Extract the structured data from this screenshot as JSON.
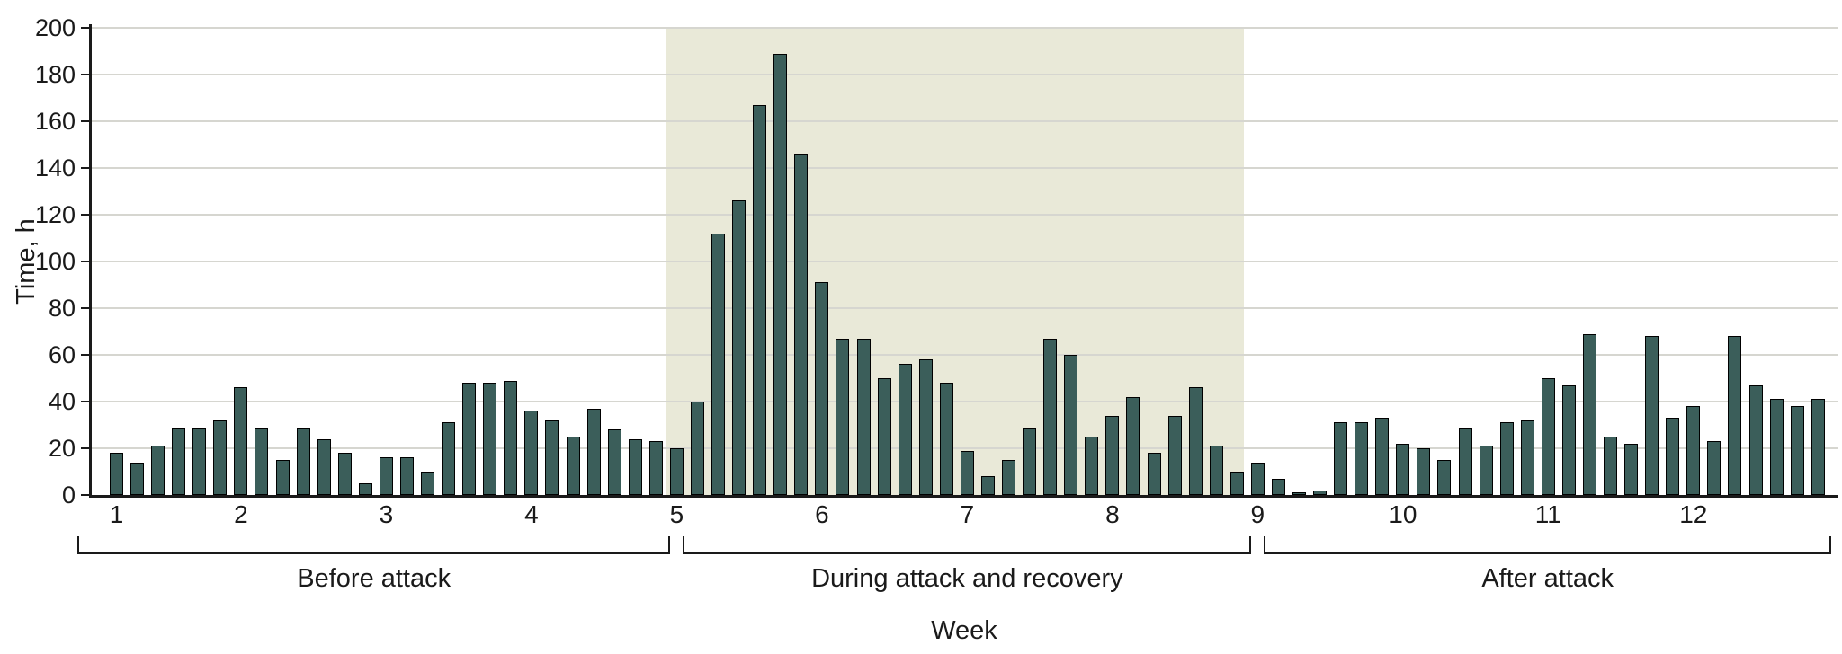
{
  "chart_data": {
    "type": "bar",
    "title": "",
    "ylabel": "Time, h",
    "xlabel": "Week",
    "ylim": [
      0,
      200
    ],
    "ytick_step": 20,
    "yticks": [
      0,
      20,
      40,
      60,
      80,
      100,
      120,
      140,
      160,
      180,
      200
    ],
    "grid": true,
    "legend_position": "none",
    "bar_unit": "day",
    "weeks": [
      {
        "week": "1",
        "values": [
          18,
          14,
          21,
          29,
          29,
          32
        ]
      },
      {
        "week": "2",
        "values": [
          46,
          29,
          15,
          29,
          24,
          18,
          5
        ]
      },
      {
        "week": "3",
        "values": [
          16,
          16,
          10,
          31,
          48,
          48,
          49
        ]
      },
      {
        "week": "4",
        "values": [
          36,
          32,
          25,
          37,
          28,
          24,
          23
        ]
      },
      {
        "week": "5",
        "values": [
          20,
          40,
          112,
          126,
          167,
          189,
          146
        ]
      },
      {
        "week": "6",
        "values": [
          91,
          67,
          67,
          50,
          56,
          58,
          48
        ]
      },
      {
        "week": "7",
        "values": [
          19,
          8,
          15,
          29,
          67,
          60,
          25
        ]
      },
      {
        "week": "8",
        "values": [
          34,
          42,
          18,
          34,
          46,
          21,
          10
        ]
      },
      {
        "week": "9",
        "values": [
          14,
          7,
          1,
          2,
          31,
          31,
          33
        ]
      },
      {
        "week": "10",
        "values": [
          22,
          20,
          15,
          29,
          21,
          31,
          32
        ]
      },
      {
        "week": "11",
        "values": [
          50,
          47,
          69,
          25,
          22,
          68,
          33
        ]
      },
      {
        "week": "12",
        "values": [
          38,
          23,
          68,
          47,
          41,
          38,
          41
        ]
      }
    ],
    "phases": [
      {
        "label": "Before attack",
        "from_week": 1,
        "to_week": 5
      },
      {
        "label": "During attack and recovery",
        "from_week": 5,
        "to_week": 9
      },
      {
        "label": "After attack",
        "from_week": 9,
        "to_week": 12
      }
    ],
    "shaded_region": {
      "from_week": 5,
      "to_week": 9
    },
    "colors": {
      "bar_fill": "#3b5e5a",
      "bar_stroke": "#000000",
      "shade": "#e9e9d8",
      "gridline": "#d6d6d0",
      "axis": "#1a1a1a",
      "text": "#1a1a1a"
    }
  }
}
